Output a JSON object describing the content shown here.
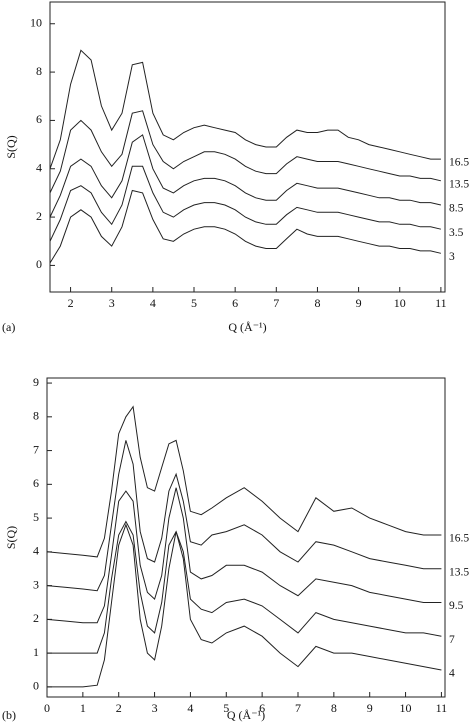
{
  "chart_data": [
    {
      "type": "line",
      "panel_label": "(a)",
      "x_label": "Q (Å⁻¹)",
      "y_label": "S(Q)",
      "xlim": [
        1.5,
        11.1
      ],
      "ylim": [
        -1.1,
        10.9
      ],
      "xticks": [
        2,
        3,
        4,
        5,
        6,
        7,
        8,
        9,
        10,
        11
      ],
      "yticks": [
        0,
        2,
        4,
        6,
        8,
        10
      ],
      "x": [
        1.5,
        1.75,
        2,
        2.25,
        2.5,
        2.75,
        3,
        3.25,
        3.5,
        3.75,
        4,
        4.25,
        4.5,
        4.75,
        5,
        5.25,
        5.5,
        5.75,
        6,
        6.25,
        6.5,
        6.75,
        7,
        7.25,
        7.5,
        7.75,
        8,
        8.25,
        8.5,
        8.75,
        9,
        9.25,
        9.5,
        9.75,
        10,
        10.25,
        10.5,
        10.75,
        11
      ],
      "series": [
        {
          "name": "16.5",
          "color": "#222222",
          "values": [
            4.0,
            5.2,
            7.5,
            8.9,
            8.5,
            6.6,
            5.6,
            6.3,
            8.3,
            8.4,
            6.3,
            5.4,
            5.2,
            5.5,
            5.7,
            5.8,
            5.7,
            5.6,
            5.5,
            5.2,
            5.0,
            4.9,
            4.9,
            5.3,
            5.6,
            5.5,
            5.5,
            5.6,
            5.6,
            5.3,
            5.2,
            5.0,
            4.9,
            4.8,
            4.7,
            4.6,
            4.5,
            4.4,
            4.4
          ]
        },
        {
          "name": "13.5",
          "color": "#222222",
          "values": [
            3.0,
            3.9,
            5.6,
            6.0,
            5.6,
            4.7,
            4.1,
            4.6,
            6.3,
            6.4,
            5.0,
            4.3,
            4.0,
            4.3,
            4.5,
            4.7,
            4.7,
            4.6,
            4.4,
            4.1,
            3.9,
            3.8,
            3.8,
            4.2,
            4.5,
            4.4,
            4.3,
            4.3,
            4.3,
            4.2,
            4.1,
            4.0,
            3.9,
            3.8,
            3.7,
            3.7,
            3.6,
            3.6,
            3.5
          ]
        },
        {
          "name": "8.5",
          "color": "#222222",
          "values": [
            2.0,
            2.9,
            4.1,
            4.4,
            4.1,
            3.3,
            2.8,
            3.5,
            5.1,
            5.4,
            4.0,
            3.2,
            3.0,
            3.3,
            3.5,
            3.6,
            3.6,
            3.5,
            3.3,
            3.0,
            2.8,
            2.7,
            2.7,
            3.1,
            3.4,
            3.3,
            3.2,
            3.2,
            3.2,
            3.1,
            3.0,
            2.9,
            2.8,
            2.8,
            2.7,
            2.7,
            2.6,
            2.6,
            2.5
          ]
        },
        {
          "name": "3.5",
          "color": "#222222",
          "values": [
            1.0,
            1.9,
            3.1,
            3.3,
            3.0,
            2.2,
            1.7,
            2.5,
            4.1,
            4.1,
            3.0,
            2.2,
            2.0,
            2.3,
            2.5,
            2.6,
            2.6,
            2.5,
            2.3,
            2.0,
            1.8,
            1.7,
            1.7,
            2.1,
            2.4,
            2.3,
            2.2,
            2.2,
            2.2,
            2.1,
            2.0,
            1.9,
            1.8,
            1.8,
            1.7,
            1.7,
            1.6,
            1.6,
            1.5
          ]
        },
        {
          "name": "3",
          "color": "#222222",
          "values": [
            0.1,
            0.8,
            2.0,
            2.3,
            2.0,
            1.2,
            0.8,
            1.6,
            3.1,
            3.0,
            1.9,
            1.1,
            1.0,
            1.3,
            1.5,
            1.6,
            1.6,
            1.5,
            1.3,
            1.0,
            0.8,
            0.7,
            0.7,
            1.1,
            1.5,
            1.3,
            1.2,
            1.2,
            1.2,
            1.1,
            1.0,
            0.9,
            0.8,
            0.8,
            0.7,
            0.7,
            0.6,
            0.6,
            0.5
          ]
        }
      ]
    },
    {
      "type": "line",
      "panel_label": "(b)",
      "x_label": "Q (Å⁻¹)",
      "y_label": "S(Q)",
      "xlim": [
        0,
        11.1
      ],
      "ylim": [
        -0.3,
        9.15
      ],
      "xticks": [
        0,
        1,
        2,
        3,
        4,
        5,
        6,
        7,
        8,
        9,
        10,
        11
      ],
      "yticks": [
        0,
        1,
        2,
        3,
        4,
        5,
        6,
        7,
        8,
        9
      ],
      "x": [
        0,
        0.5,
        1,
        1.4,
        1.6,
        1.8,
        2,
        2.2,
        2.4,
        2.6,
        2.8,
        3.0,
        3.2,
        3.4,
        3.6,
        3.8,
        4.0,
        4.3,
        4.6,
        5.0,
        5.5,
        6.0,
        6.5,
        7.0,
        7.5,
        8.0,
        8.5,
        9.0,
        9.5,
        10,
        10.5,
        11
      ],
      "series": [
        {
          "name": "16.5",
          "color": "#222222",
          "values": [
            4,
            3.95,
            3.9,
            3.85,
            4.4,
            5.8,
            7.5,
            8.0,
            8.3,
            6.8,
            5.9,
            5.8,
            6.5,
            7.2,
            7.3,
            6.4,
            5.2,
            5.1,
            5.3,
            5.6,
            5.9,
            5.5,
            5.0,
            4.6,
            5.6,
            5.2,
            5.3,
            5.0,
            4.8,
            4.6,
            4.5,
            4.5
          ]
        },
        {
          "name": "13.5",
          "color": "#222222",
          "values": [
            3,
            2.95,
            2.9,
            2.85,
            3.3,
            4.8,
            6.3,
            7.3,
            6.6,
            4.6,
            3.8,
            3.7,
            4.4,
            5.8,
            6.3,
            5.5,
            4.3,
            4.2,
            4.5,
            4.6,
            4.8,
            4.5,
            4.0,
            3.7,
            4.3,
            4.2,
            4.0,
            3.8,
            3.7,
            3.6,
            3.5,
            3.5
          ]
        },
        {
          "name": "9.5",
          "color": "#222222",
          "values": [
            2,
            1.95,
            1.9,
            1.9,
            2.4,
            3.9,
            5.5,
            5.8,
            5.5,
            3.6,
            2.8,
            2.6,
            3.3,
            5.0,
            5.9,
            5.0,
            3.4,
            3.2,
            3.3,
            3.6,
            3.6,
            3.4,
            3.0,
            2.7,
            3.2,
            3.1,
            3.0,
            2.8,
            2.7,
            2.6,
            2.5,
            2.5
          ]
        },
        {
          "name": "7",
          "color": "#222222",
          "values": [
            1,
            1,
            1,
            1,
            1.6,
            3.2,
            4.5,
            4.9,
            4.5,
            2.8,
            1.8,
            1.6,
            2.5,
            4.2,
            4.6,
            4.0,
            2.6,
            2.3,
            2.2,
            2.5,
            2.6,
            2.4,
            2.0,
            1.6,
            2.2,
            2.0,
            1.9,
            1.8,
            1.7,
            1.6,
            1.6,
            1.5
          ]
        },
        {
          "name": "4",
          "color": "#222222",
          "values": [
            0,
            0,
            0,
            0.05,
            0.8,
            2.5,
            4.2,
            4.8,
            4.2,
            2.0,
            1.0,
            0.8,
            1.8,
            3.5,
            4.6,
            3.8,
            2.0,
            1.4,
            1.3,
            1.6,
            1.8,
            1.5,
            1.0,
            0.6,
            1.2,
            1.0,
            1.0,
            0.9,
            0.8,
            0.7,
            0.6,
            0.5
          ]
        }
      ]
    }
  ]
}
